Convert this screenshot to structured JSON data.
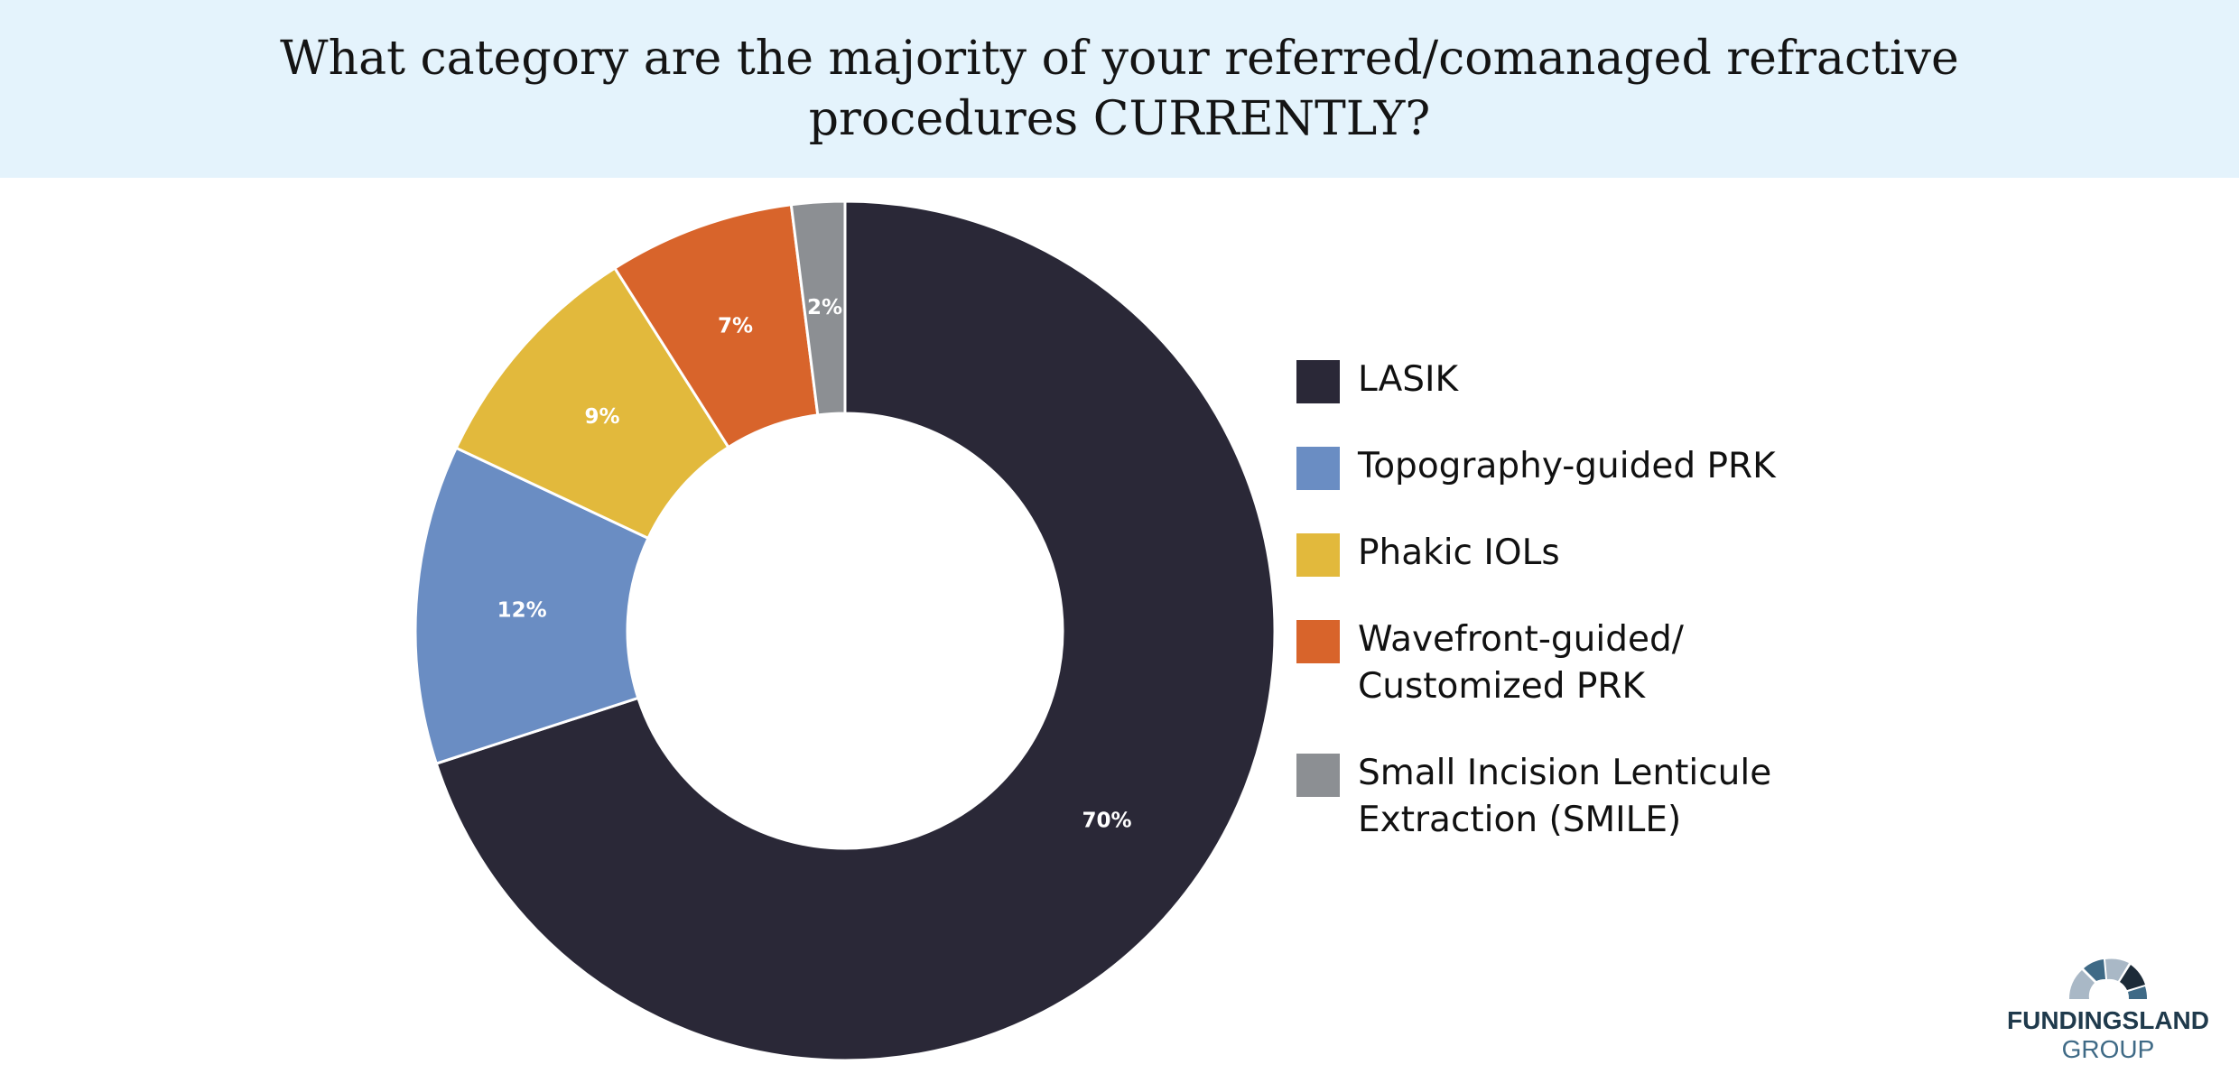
{
  "chart_data": {
    "type": "pie",
    "variant": "donut",
    "title": "What category are the majority of your referred/comanaged refractive procedures CURRENTLY?",
    "categories": [
      "LASIK",
      "Topography-guided PRK",
      "Phakic IOLs",
      "Wavefront-guided/ Customized PRK",
      "Small Incision Lenticule Extraction (SMILE)"
    ],
    "values": [
      70,
      12,
      9,
      7,
      2
    ],
    "value_labels": [
      "70%",
      "12%",
      "9%",
      "7%",
      "2%"
    ],
    "colors": [
      "#2a2837",
      "#6a8dc3",
      "#e2b93c",
      "#d8642b",
      "#8c8f93"
    ],
    "legend_position": "right"
  },
  "logo": {
    "name": "FUNDINGSLAND",
    "sub": "GROUP"
  }
}
